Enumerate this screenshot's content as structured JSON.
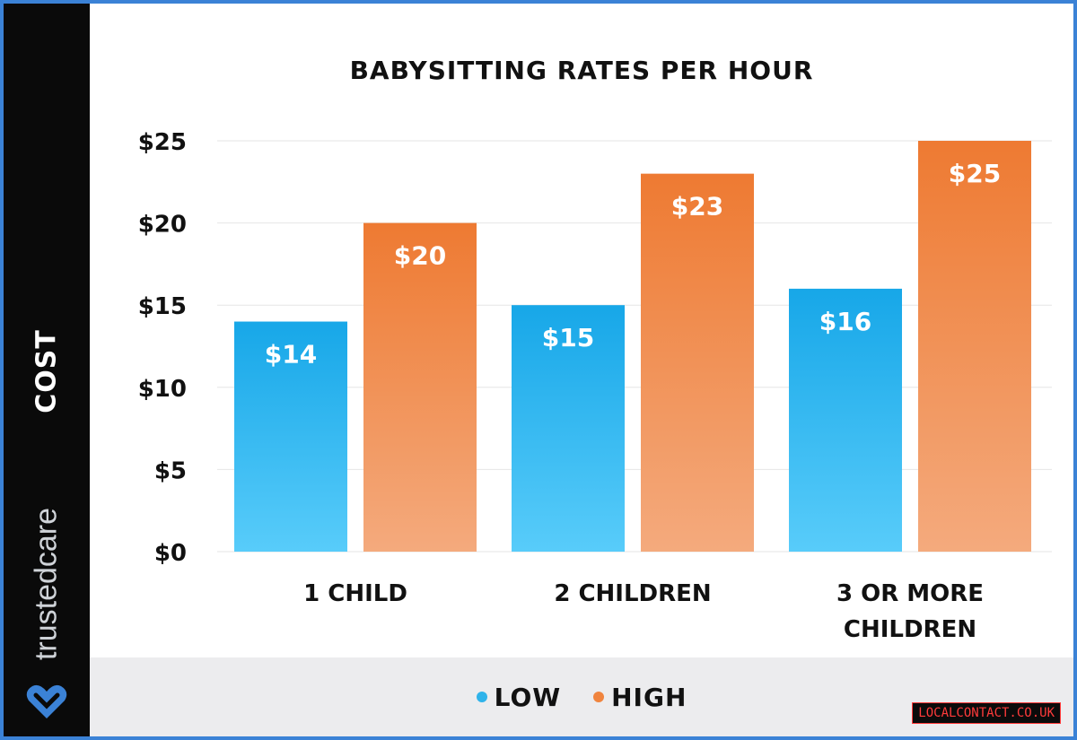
{
  "sidebar": {
    "axis_title": "COST",
    "brand_name": "trustedcare",
    "brand_logo_icon": "heart-logo-icon",
    "brand_logo_color": "#3b82d6"
  },
  "legend": [
    {
      "label": "LOW",
      "color": "#2fb3ea"
    },
    {
      "label": "HIGH",
      "color": "#f0843e"
    }
  ],
  "watermark": "LOCALCONTACT.CO.UK",
  "chart_data": {
    "type": "bar",
    "title": "BABYSITTING RATES PER HOUR",
    "ylabel": "COST",
    "xlabel": "",
    "ylim": [
      0,
      25
    ],
    "yticks": [
      0,
      5,
      10,
      15,
      20,
      25
    ],
    "ytick_labels": [
      "$0",
      "$5",
      "$10",
      "$15",
      "$20",
      "$25"
    ],
    "categories": [
      [
        "1 CHILD"
      ],
      [
        "2 CHILDREN"
      ],
      [
        "3 OR MORE",
        "CHILDREN"
      ]
    ],
    "grid": true,
    "legend_position": "bottom",
    "series": [
      {
        "name": "LOW",
        "values": [
          14,
          15,
          16
        ],
        "labels": [
          "$14",
          "$15",
          "$16"
        ],
        "color_top": "#17a7e8",
        "color_bottom": "#58ccfa"
      },
      {
        "name": "HIGH",
        "values": [
          20,
          23,
          25
        ],
        "labels": [
          "$20",
          "$23",
          "$25"
        ],
        "color_top": "#ee7a32",
        "color_bottom": "#f4aa7d"
      }
    ]
  }
}
